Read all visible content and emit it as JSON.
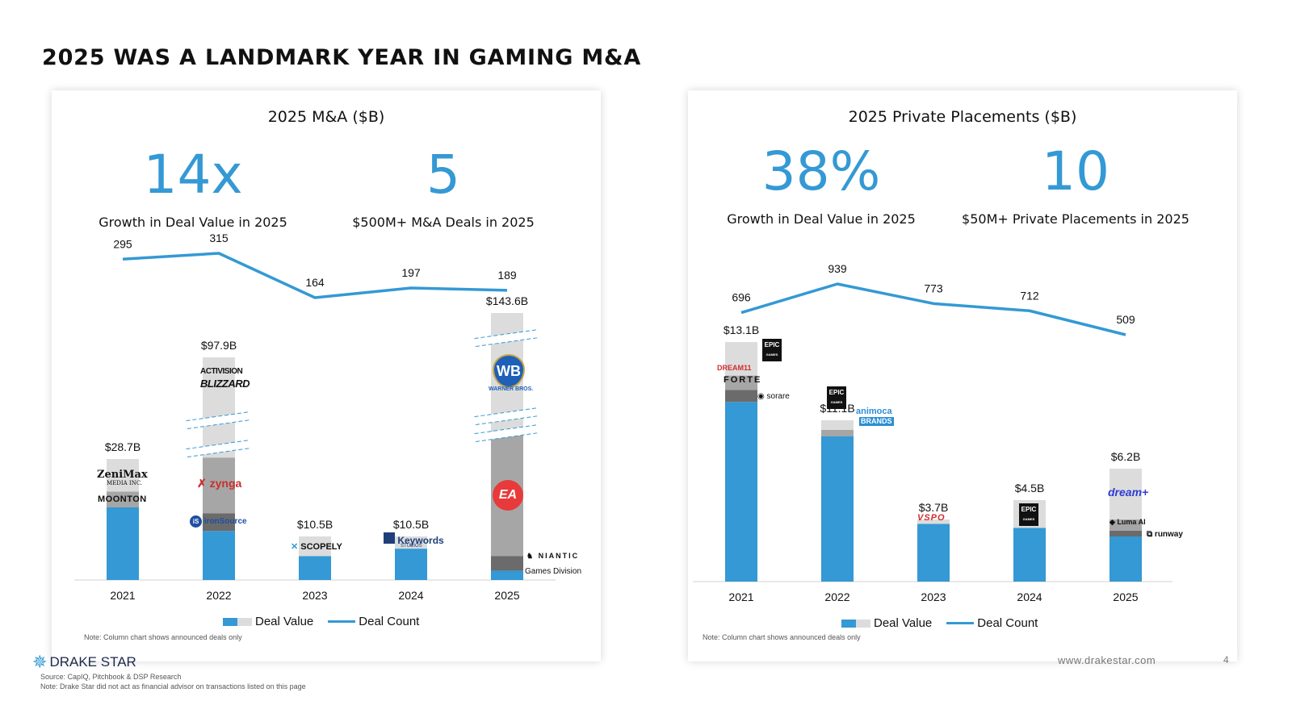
{
  "page": {
    "title": "2025 WAS A LANDMARK YEAR IN GAMING M&A",
    "footer": {
      "brand": "DRAKE STAR",
      "source": "Source: CapIQ, Pitchbook & DSP Research",
      "note": "Note: Drake Star did not act as financial advisor on transactions listed on this page",
      "url": "www.drakestar.com",
      "page_number": "4"
    }
  },
  "ma_panel": {
    "title": "2025 M&A ($B)",
    "kpis": [
      {
        "value": "14x",
        "label": "Growth in Deal Value in 2025"
      },
      {
        "value": "5",
        "label": "$500M+ M&A Deals in 2025"
      }
    ],
    "legend": {
      "bar": "Deal Value",
      "line": "Deal Count"
    },
    "note": "Note: Column chart shows announced deals only",
    "logos": {
      "zenimax": "ZeniMax",
      "zenimax_sub": "MEDIA INC.",
      "moonton": "MOONTON",
      "activision": "ACTIVISION",
      "blizzard": "BLIZZARD",
      "zynga": "zynga",
      "ironsource": "ironSource",
      "scopely": "SCOPELY",
      "keywords": "Keywords",
      "keywords_sub": "STUDIOS",
      "warner": "WB",
      "warner_sub": "WARNER BROS.",
      "ea": "EA",
      "niantic": "NIANTIC",
      "niantic_sub": "Games Division"
    }
  },
  "pp_panel": {
    "title": "2025 Private Placements ($B)",
    "kpis": [
      {
        "value": "38%",
        "label": "Growth in Deal Value in 2025"
      },
      {
        "value": "10",
        "label": "$50M+ Private Placements in 2025"
      }
    ],
    "legend": {
      "bar": "Deal Value",
      "line": "Deal Count"
    },
    "note": "Note: Column chart shows announced deals only",
    "logos": {
      "epic": "EPIC",
      "epic_sub": "GAMES",
      "dream11": "DREAM11",
      "forte": "FORTE",
      "sorare": "sorare",
      "animoca": "animoca",
      "animoca_sub": "BRANDS",
      "vspo": "VSPO",
      "dream_plus": "dream+",
      "luma": "Luma AI",
      "runway": "runway"
    }
  },
  "chart_data": [
    {
      "type": "bar",
      "title": "2025 M&A ($B)",
      "categories": [
        "2021",
        "2022",
        "2023",
        "2024",
        "2025"
      ],
      "series": [
        {
          "name": "Deal Value",
          "values": [
            28.7,
            97.9,
            10.5,
            10.5,
            143.6
          ],
          "labels": [
            "$28.7B",
            "$97.9B",
            "$10.5B",
            "$10.5B",
            "$143.6B"
          ]
        },
        {
          "name": "Deal Count",
          "values": [
            295,
            315,
            164,
            197,
            189
          ]
        }
      ],
      "axis_break": true,
      "colors": {
        "bar": "#3499d4",
        "light": "#dcdcdc",
        "mid": "#a6a6a6",
        "dark": "#6b6b6b",
        "line": "#3499d4"
      }
    },
    {
      "type": "bar",
      "title": "2025 Private Placements ($B)",
      "categories": [
        "2021",
        "2022",
        "2023",
        "2024",
        "2025"
      ],
      "series": [
        {
          "name": "Deal Value",
          "values": [
            13.1,
            11.1,
            3.7,
            4.5,
            6.2
          ],
          "labels": [
            "$13.1B",
            "$11.1B",
            "$3.7B",
            "$4.5B",
            "$6.2B"
          ]
        },
        {
          "name": "Deal Count",
          "values": [
            696,
            939,
            773,
            712,
            509
          ]
        }
      ],
      "colors": {
        "bar": "#3499d4",
        "light": "#dcdcdc",
        "mid": "#a6a6a6",
        "dark": "#6b6b6b",
        "line": "#3499d4"
      }
    }
  ]
}
